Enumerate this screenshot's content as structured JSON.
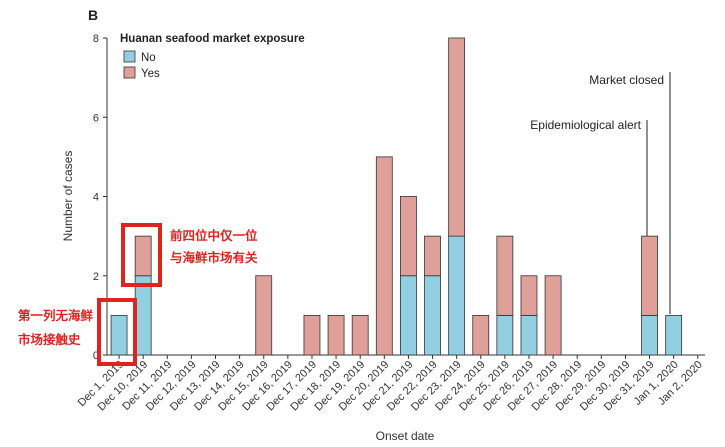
{
  "panel_letter": "B",
  "chart_data": {
    "type": "bar",
    "stacked": true,
    "categories": [
      "Dec 1, 2019",
      "Dec 10, 2019",
      "Dec 11, 2019",
      "Dec 12, 2019",
      "Dec 13, 2019",
      "Dec 14, 2019",
      "Dec 15, 2019",
      "Dec 16, 2019",
      "Dec 17, 2019",
      "Dec 18, 2019",
      "Dec 19, 2019",
      "Dec 20, 2019",
      "Dec 21, 2019",
      "Dec 22, 2019",
      "Dec 23, 2019",
      "Dec 24, 2019",
      "Dec 25, 2019",
      "Dec 26, 2019",
      "Dec 27, 2019",
      "Dec 28, 2019",
      "Dec 29, 2019",
      "Dec 30, 2019",
      "Dec 31, 2019",
      "Jan 1, 2020",
      "Jan 2, 2020"
    ],
    "series": [
      {
        "name": "No",
        "color": "#92cfe0",
        "values": [
          1,
          2,
          0,
          0,
          0,
          0,
          0,
          0,
          0,
          0,
          0,
          0,
          2,
          2,
          3,
          0,
          1,
          1,
          0,
          0,
          0,
          0,
          1,
          1,
          0
        ]
      },
      {
        "name": "Yes",
        "color": "#dfa09a",
        "values": [
          0,
          1,
          0,
          0,
          0,
          0,
          2,
          0,
          1,
          1,
          1,
          5,
          2,
          1,
          5,
          1,
          2,
          1,
          2,
          0,
          0,
          0,
          2,
          0,
          0
        ]
      }
    ],
    "xlabel": "Onset date",
    "ylabel": "Number of cases",
    "ylim": [
      0,
      8
    ],
    "yticks": [
      0,
      2,
      4,
      6,
      8
    ],
    "grid": false,
    "legend": {
      "title": "Huanan seafood market exposure",
      "placement": "top-left"
    },
    "annotations": [
      {
        "text": "Epidemiological alert",
        "category": "Dec 31, 2019"
      },
      {
        "text": "Market closed",
        "category": "Jan 1, 2020"
      }
    ]
  },
  "callouts": [
    {
      "lines": [
        "前四位中仅一位",
        "与海鲜市场有关"
      ],
      "category": "Dec 10, 2019"
    },
    {
      "lines": [
        "第一列无海鲜",
        "市场接触史"
      ],
      "category": "Dec 1, 2019"
    }
  ]
}
